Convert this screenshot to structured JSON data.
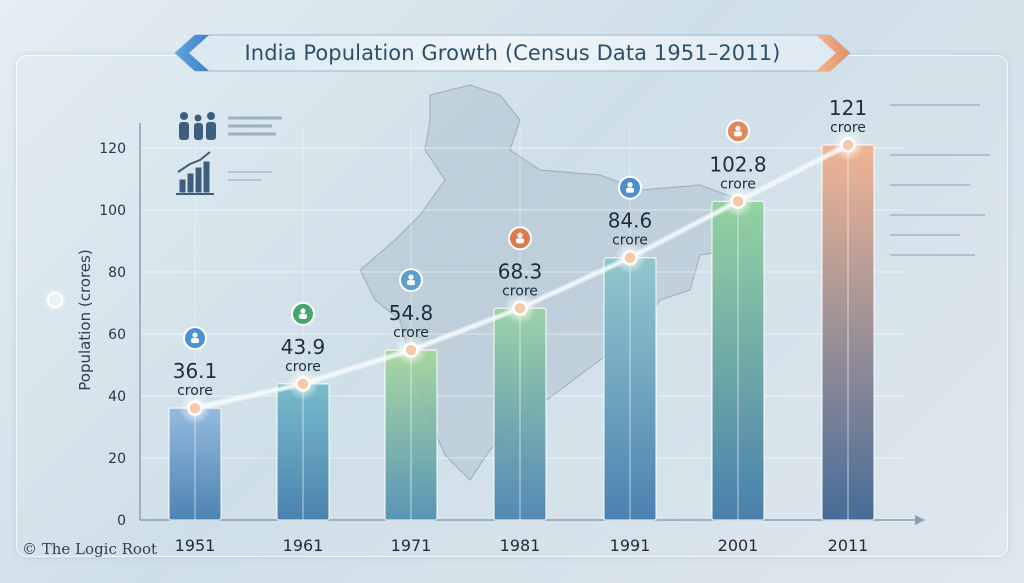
{
  "title": "India Population Growth (Census Data 1951–2011)",
  "credit": "© The Logic Root",
  "colors": {
    "bar_top": [
      "#8fb6dd",
      "#6fb8c8",
      "#a6d79b",
      "#98d2a2",
      "#8ec6cc",
      "#8fd29a",
      "#f4b08b"
    ],
    "line": "#f2fbff",
    "marker_fill": "#f6c9a8",
    "label_text": "#1e2e3c"
  },
  "icons": [
    "people-icon",
    "growth-chart-icon",
    "group-icon",
    "family-icon",
    "crowd-icon",
    "person-icon",
    "family-icon",
    "crowd-icon"
  ],
  "chart_data": {
    "type": "bar",
    "title": "India Population Growth (Census Data 1951–2011)",
    "xlabel": "",
    "ylabel": "Population (crores)",
    "categories": [
      "1951",
      "1961",
      "1971",
      "1981",
      "1991",
      "2001",
      "2011"
    ],
    "values": [
      36.1,
      43.9,
      54.8,
      68.3,
      84.6,
      102.8,
      121
    ],
    "value_labels": [
      "36.1",
      "43.9",
      "54.8",
      "68.3",
      "84.6",
      "102.8",
      "121"
    ],
    "unit_label": "crore",
    "ylim": [
      0,
      120
    ],
    "yticks": [
      0,
      20,
      40,
      60,
      80,
      100,
      120
    ],
    "overlay": "line-with-markers",
    "grid": true
  }
}
